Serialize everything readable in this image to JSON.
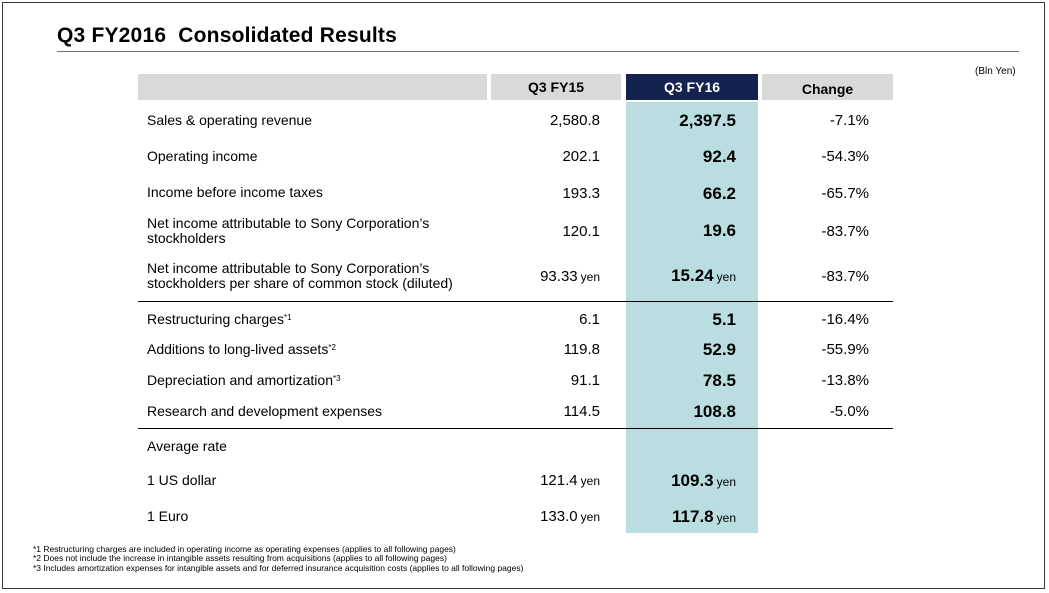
{
  "title": "Q3 FY2016  Consolidated Results",
  "unit_note": "(Bln Yen)",
  "header": {
    "col_fy15": "Q3 FY15",
    "col_fy16": "Q3 FY16",
    "col_change": "Change"
  },
  "colors": {
    "header_gray": "#d9d9d9",
    "header_navy": "#14224f",
    "highlight_teal": "#b9dde1"
  },
  "rows": {
    "sales": {
      "label": "Sales & operating revenue",
      "fy15": "2,580.8",
      "fy16": "2,397.5",
      "change": "-7.1%"
    },
    "op_income": {
      "label": "Operating income",
      "fy15": "202.1",
      "fy16": "92.4",
      "change": "-54.3%"
    },
    "income_before_tax": {
      "label": "Income before income taxes",
      "fy15": "193.3",
      "fy16": "66.2",
      "change": "-65.7%"
    },
    "net_income": {
      "label_line1": "Net income attributable to Sony Corporation’s",
      "label_line2": "stockholders",
      "fy15": "120.1",
      "fy16": "19.6",
      "change": "-83.7%"
    },
    "eps": {
      "label_line1": "Net income attributable to Sony Corporation’s",
      "label_line2": "stockholders per share of common stock (diluted)",
      "fy15": "93.33",
      "fy15_unit": "yen",
      "fy16": "15.24",
      "fy16_unit": "yen",
      "change": "-83.7%"
    },
    "restructuring": {
      "label": "Restructuring charges",
      "note": "*1",
      "fy15": "6.1",
      "fy16": "5.1",
      "change": "-16.4%"
    },
    "additions": {
      "label": "Additions to long-lived assets",
      "note": "*2",
      "fy15": "119.8",
      "fy16": "52.9",
      "change": "-55.9%"
    },
    "depreciation": {
      "label": "Depreciation and amortization",
      "note": "*3",
      "fy15": "91.1",
      "fy16": "78.5",
      "change": "-13.8%"
    },
    "rnd": {
      "label": "Research and development expenses",
      "fy15": "114.5",
      "fy16": "108.8",
      "change": "-5.0%"
    },
    "avg_rate": {
      "label": "Average rate"
    },
    "usd": {
      "label": "1 US dollar",
      "fy15": "121.4",
      "fy15_unit": "yen",
      "fy16": "109.3",
      "fy16_unit": "yen"
    },
    "eur": {
      "label": "1 Euro",
      "fy15": "133.0",
      "fy15_unit": "yen",
      "fy16": "117.8",
      "fy16_unit": "yen"
    }
  },
  "footnotes": [
    "*1 Restructuring charges are included in operating income as operating expenses (applies to all following pages)",
    "*2 Does not include the increase in intangible assets resulting from acquisitions (applies to all following pages)",
    "*3 Includes amortization expenses for intangible assets and for deferred insurance acquisition costs (applies to all following pages)"
  ]
}
